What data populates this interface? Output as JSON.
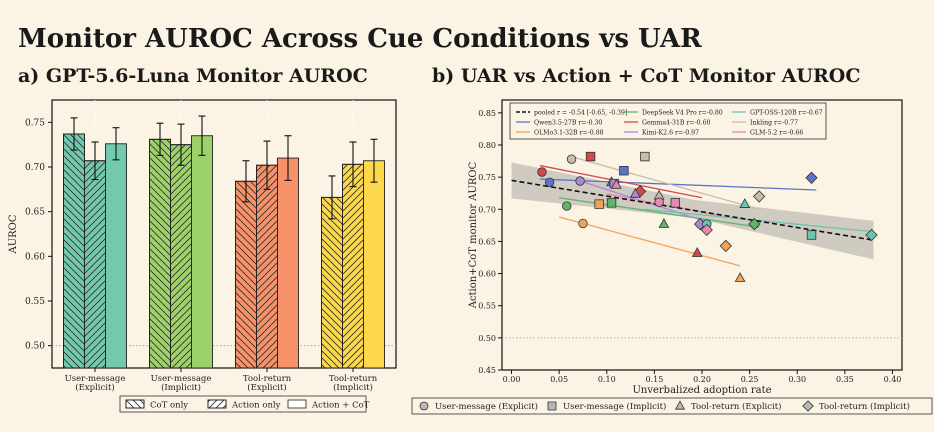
{
  "title": "Monitor AUROC Across Cue Conditions vs UAR",
  "chart_data": [
    {
      "type": "bar",
      "title": "a) GPT-5.6-Luna Monitor AUROC",
      "ylabel": "AUROC",
      "ylim": [
        0.475,
        0.775
      ],
      "yticks": [
        "0.50",
        "0.55",
        "0.60",
        "0.65",
        "0.70",
        "0.75"
      ],
      "categories": [
        "User-message (Explicit)",
        "User-message (Implicit)",
        "Tool-return (Explicit)",
        "Tool-return (Implicit)"
      ],
      "category_label_lines": [
        [
          "User-message",
          "(Explicit)"
        ],
        [
          "User-message",
          "(Implicit)"
        ],
        [
          "Tool-return",
          "(Explicit)"
        ],
        [
          "Tool-return",
          "(Implicit)"
        ]
      ],
      "category_colors": [
        "#73c9ad",
        "#9dd169",
        "#f7916a",
        "#fcd84a"
      ],
      "series": [
        {
          "name": "CoT only",
          "hatch": "backslash",
          "values": [
            0.737,
            0.731,
            0.684,
            0.666
          ],
          "err": [
            0.018,
            0.018,
            0.023,
            0.024
          ]
        },
        {
          "name": "Action only",
          "hatch": "slash",
          "values": [
            0.707,
            0.725,
            0.702,
            0.703
          ],
          "err": [
            0.021,
            0.023,
            0.027,
            0.025
          ]
        },
        {
          "name": "Action + CoT",
          "hatch": "none",
          "values": [
            0.726,
            0.735,
            0.71,
            0.707
          ],
          "err": [
            0.018,
            0.022,
            0.025,
            0.024
          ]
        }
      ],
      "reference_line": 0.5,
      "legend_position": "bottom"
    },
    {
      "type": "scatter",
      "title": "b) UAR vs Action + CoT Monitor AUROC",
      "xlabel": "Unverbalized adoption rate",
      "ylabel": "Action+CoT monitor AUROC",
      "xlim": [
        -0.01,
        0.41
      ],
      "ylim": [
        0.45,
        0.87
      ],
      "xticks": [
        "0.00",
        "0.05",
        "0.10",
        "0.15",
        "0.20",
        "0.25",
        "0.30",
        "0.35",
        "0.40"
      ],
      "yticks": [
        "0.45",
        "0.50",
        "0.55",
        "0.60",
        "0.65",
        "0.70",
        "0.75",
        "0.80",
        "0.85"
      ],
      "reference_line": 0.5,
      "pooled": {
        "label": "pooled r = -0.54 [-0.65, -0.39]",
        "x": [
          0.0,
          0.38
        ],
        "y": [
          0.745,
          0.652
        ]
      },
      "legend_position": "top",
      "models": [
        {
          "name": "Qwen3.5-27B",
          "r_label": "Qwen3.5-27B r=-0.30",
          "color": "#5b74c9",
          "fit": [
            [
              0.03,
              0.747
            ],
            [
              0.32,
              0.73
            ]
          ],
          "points": [
            {
              "m": "circle",
              "x": 0.04,
              "y": 0.742
            },
            {
              "m": "square",
              "x": 0.118,
              "y": 0.76
            },
            {
              "m": "triangle",
              "x": 0.105,
              "y": 0.742
            },
            {
              "m": "diamond",
              "x": 0.315,
              "y": 0.749
            }
          ]
        },
        {
          "name": "OLMo3.1-32B",
          "r_label": "OLMo3.1-32B r=-0.88",
          "color": "#f3a355",
          "fit": [
            [
              0.05,
              0.688
            ],
            [
              0.24,
              0.612
            ]
          ],
          "points": [
            {
              "m": "circle",
              "x": 0.075,
              "y": 0.678
            },
            {
              "m": "square",
              "x": 0.092,
              "y": 0.708
            },
            {
              "m": "triangle",
              "x": 0.24,
              "y": 0.593
            },
            {
              "m": "diamond",
              "x": 0.225,
              "y": 0.643
            }
          ]
        },
        {
          "name": "DeepSeek V4 Pro",
          "r_label": "DeepSeek V4 Pro r=-0.80",
          "color": "#5fb36b",
          "fit": [
            [
              0.05,
              0.718
            ],
            [
              0.26,
              0.672
            ]
          ],
          "points": [
            {
              "m": "circle",
              "x": 0.058,
              "y": 0.705
            },
            {
              "m": "square",
              "x": 0.105,
              "y": 0.71
            },
            {
              "m": "triangle",
              "x": 0.16,
              "y": 0.677
            },
            {
              "m": "diamond",
              "x": 0.255,
              "y": 0.677
            }
          ]
        },
        {
          "name": "Gemma4-31B",
          "r_label": "Gemma4-31B r=-0.60",
          "color": "#d34a4a",
          "fit": [
            [
              0.03,
              0.768
            ],
            [
              0.2,
              0.718
            ]
          ],
          "points": [
            {
              "m": "circle",
              "x": 0.032,
              "y": 0.758
            },
            {
              "m": "square",
              "x": 0.083,
              "y": 0.782
            },
            {
              "m": "triangle",
              "x": 0.195,
              "y": 0.632
            },
            {
              "m": "diamond",
              "x": 0.135,
              "y": 0.728
            }
          ]
        },
        {
          "name": "Kimi-K2.6",
          "r_label": "Kimi-K2.6 r=-0.97",
          "color": "#a88ad4",
          "fit": [
            [
              0.07,
              0.745
            ],
            [
              0.21,
              0.678
            ]
          ],
          "points": [
            {
              "m": "circle",
              "x": 0.072,
              "y": 0.744
            },
            {
              "m": "square",
              "x": 0.108,
              "y": 0.74
            },
            {
              "m": "triangle",
              "x": 0.13,
              "y": 0.724
            },
            {
              "m": "diamond",
              "x": 0.198,
              "y": 0.677
            }
          ]
        },
        {
          "name": "GPT-OSS-120B",
          "r_label": "GPT-OSS-120B r=-0.67",
          "color": "#6bc4b2",
          "fit": [
            [
              0.14,
              0.7
            ],
            [
              0.38,
              0.665
            ]
          ],
          "points": [
            {
              "m": "circle",
              "x": 0.205,
              "y": 0.677
            },
            {
              "m": "square",
              "x": 0.315,
              "y": 0.66
            },
            {
              "m": "triangle",
              "x": 0.245,
              "y": 0.708
            },
            {
              "m": "diamond",
              "x": 0.378,
              "y": 0.66
            }
          ]
        },
        {
          "name": "Inkling",
          "r_label": "Inkling r=-0.77",
          "color": "#c8bca8",
          "fit": [
            [
              0.06,
              0.783
            ],
            [
              0.26,
              0.7
            ]
          ],
          "points": [
            {
              "m": "circle",
              "x": 0.063,
              "y": 0.778
            },
            {
              "m": "square",
              "x": 0.14,
              "y": 0.782
            },
            {
              "m": "triangle",
              "x": 0.155,
              "y": 0.721
            },
            {
              "m": "diamond",
              "x": 0.26,
              "y": 0.72
            }
          ]
        },
        {
          "name": "GLM-5.2",
          "r_label": "GLM-5.2 r=-0.66",
          "color": "#e48ab0",
          "fit": [
            [
              0.1,
              0.724
            ],
            [
              0.22,
              0.69
            ]
          ],
          "points": [
            {
              "m": "circle",
              "x": 0.155,
              "y": 0.711
            },
            {
              "m": "square",
              "x": 0.172,
              "y": 0.71
            },
            {
              "m": "triangle",
              "x": 0.11,
              "y": 0.738
            },
            {
              "m": "diamond",
              "x": 0.205,
              "y": 0.668
            }
          ]
        }
      ],
      "marker_legend": [
        {
          "marker": "circle",
          "label": "User-message (Explicit)"
        },
        {
          "marker": "square",
          "label": "User-message (Implicit)"
        },
        {
          "marker": "triangle",
          "label": "Tool-return (Explicit)"
        },
        {
          "marker": "diamond",
          "label": "Tool-return (Implicit)"
        }
      ]
    }
  ]
}
